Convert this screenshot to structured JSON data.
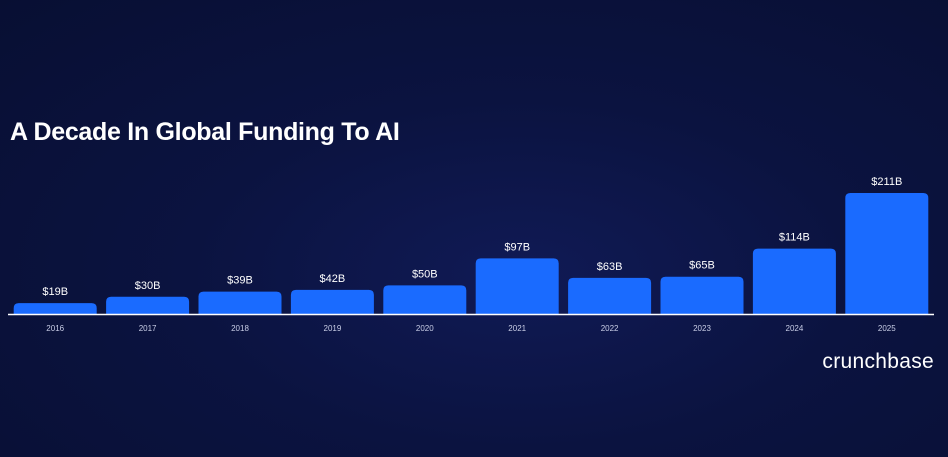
{
  "title": "A Decade In Global Funding To AI",
  "brand": "crunchbase",
  "colors": {
    "background": "#0b1340",
    "bar": "#1a6bff",
    "baseline": "#ffffff",
    "text": "#ffffff"
  },
  "chart_data": {
    "type": "bar",
    "title": "A Decade In Global Funding To AI",
    "xlabel": "",
    "ylabel": "",
    "categories": [
      "2016",
      "2017",
      "2018",
      "2019",
      "2020",
      "2021",
      "2022",
      "2023",
      "2024",
      "2025"
    ],
    "values": [
      19,
      30,
      39,
      42,
      50,
      97,
      63,
      65,
      114,
      211
    ],
    "labels": [
      "$19B",
      "$30B",
      "$39B",
      "$42B",
      "$50B",
      "$97B",
      "$63B",
      "$65B",
      "$114B",
      "$211B"
    ],
    "unit": "B",
    "ylim": [
      0,
      211
    ],
    "grid": false,
    "legend": "none"
  }
}
